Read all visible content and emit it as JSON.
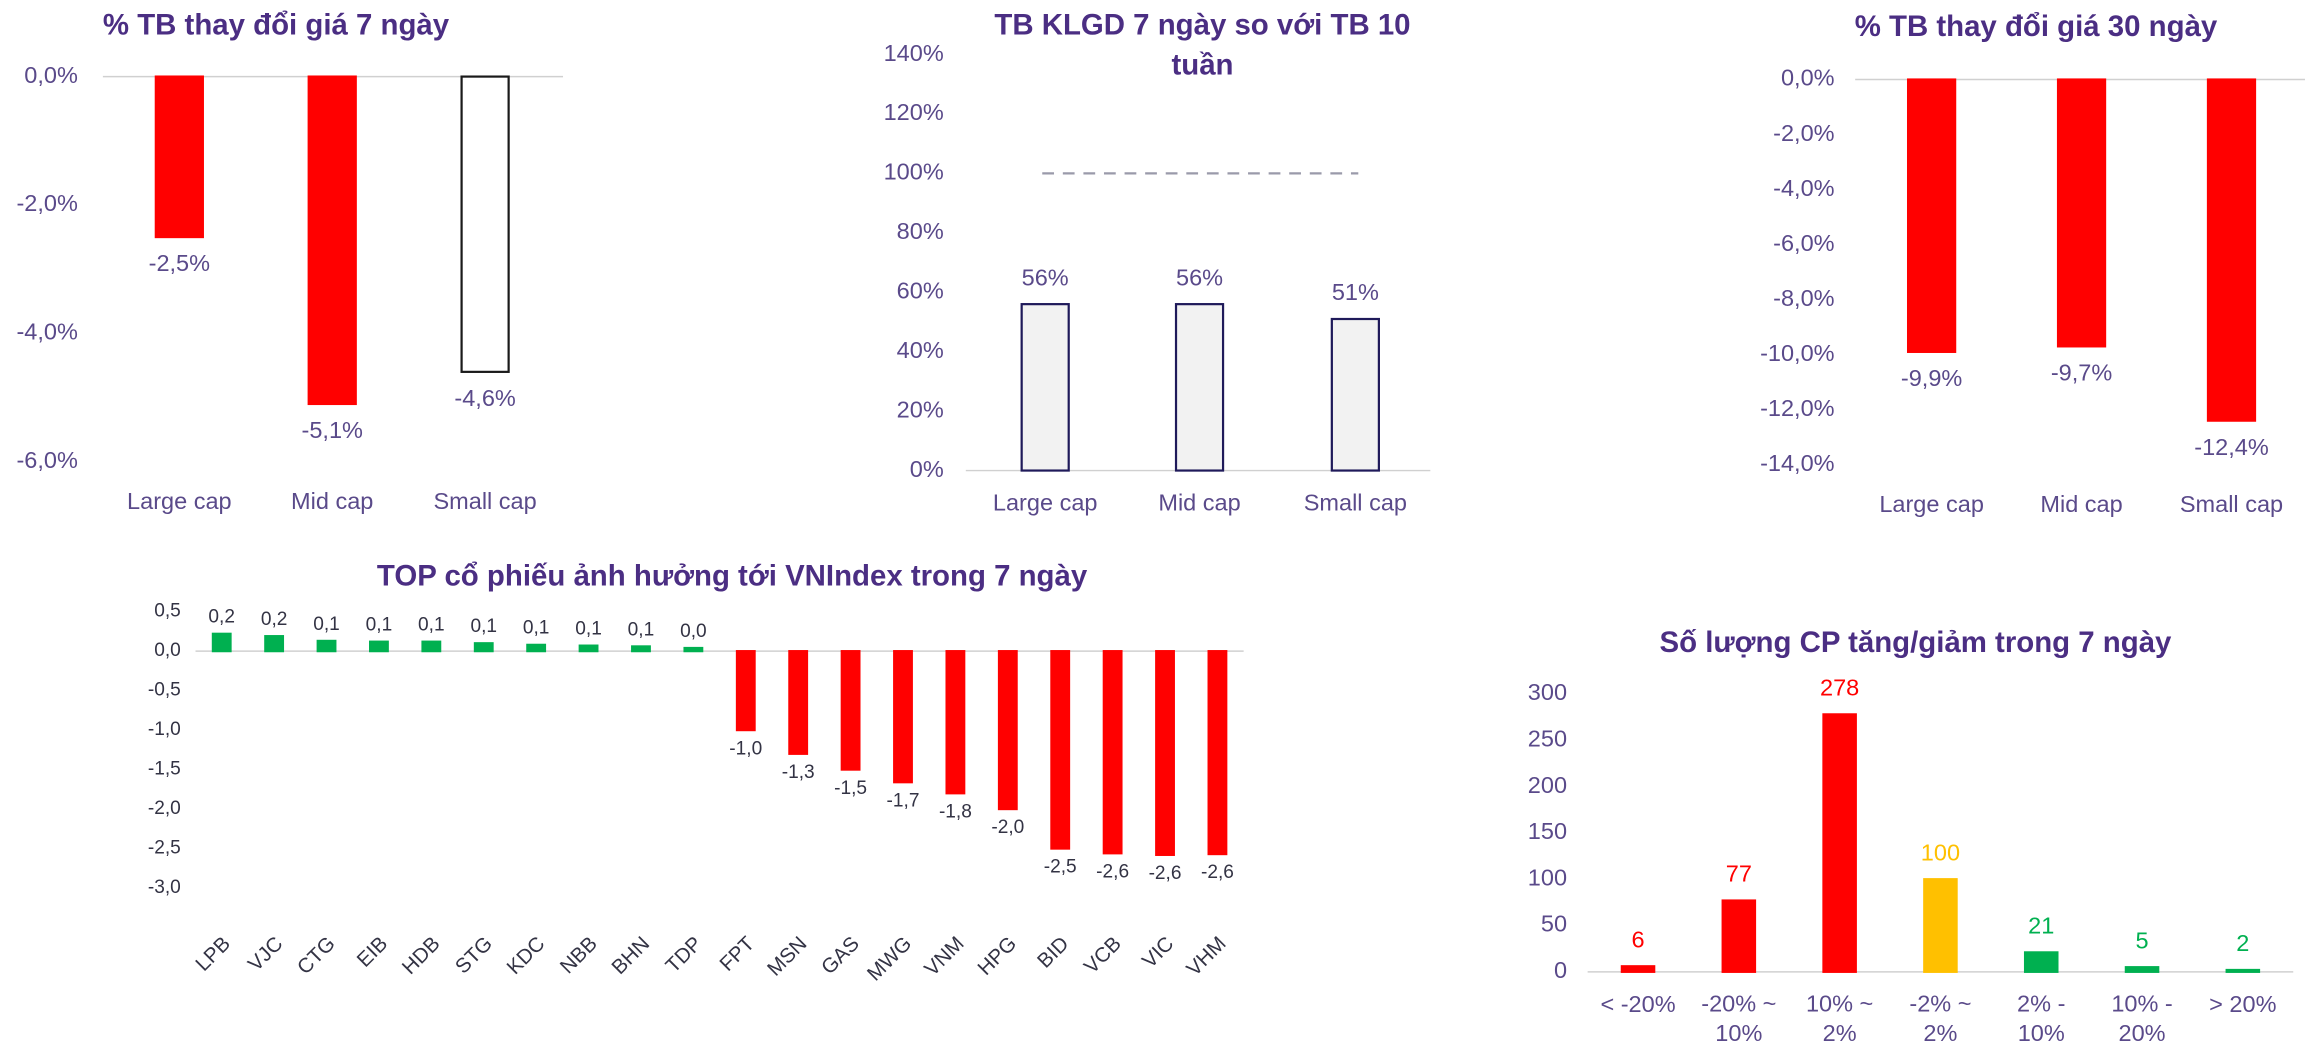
{
  "chart_data": [
    {
      "type": "bar",
      "title": "% TB thay đổi giá 7 ngày",
      "categories": [
        "Large cap",
        "Mid cap",
        "Small cap"
      ],
      "values": [
        -2.5,
        -5.1,
        -4.6
      ],
      "value_labels": [
        "-2,5%",
        "-5,1%",
        "-4,6%"
      ],
      "colors": [
        "#ff0000",
        "#ff0000",
        "#ffffff"
      ],
      "edgecolors": [
        "#ff0000",
        "#ff0000",
        "#1a1a1a"
      ],
      "ylim": [
        -6,
        0
      ],
      "yticks": [
        {
          "value": 0,
          "label": "0,0%"
        },
        {
          "value": -2,
          "label": "-2,0%"
        },
        {
          "value": -4,
          "label": "-4,0%"
        },
        {
          "value": -6,
          "label": "-6,0%"
        }
      ]
    },
    {
      "type": "bar",
      "title": "TB KLGD 7 ngày so với TB 10 tuần",
      "categories": [
        "Large cap",
        "Mid cap",
        "Small cap"
      ],
      "values": [
        56,
        56,
        51
      ],
      "value_labels": [
        "56%",
        "56%",
        "51%"
      ],
      "colors": [
        "#f2f2f2",
        "#f2f2f2",
        "#f2f2f2"
      ],
      "edgecolors": [
        "#1f1a5a",
        "#1f1a5a",
        "#1f1a5a"
      ],
      "reference_line": 100,
      "ylim": [
        0,
        140
      ],
      "yticks": [
        {
          "value": 0,
          "label": "0%"
        },
        {
          "value": 20,
          "label": "20%"
        },
        {
          "value": 40,
          "label": "40%"
        },
        {
          "value": 60,
          "label": "60%"
        },
        {
          "value": 80,
          "label": "80%"
        },
        {
          "value": 100,
          "label": "100%"
        },
        {
          "value": 120,
          "label": "120%"
        },
        {
          "value": 140,
          "label": "140%"
        }
      ]
    },
    {
      "type": "bar",
      "title": "% TB thay đổi giá 30 ngày",
      "categories": [
        "Large cap",
        "Mid cap",
        "Small cap"
      ],
      "values": [
        -9.9,
        -9.7,
        -12.4
      ],
      "value_labels": [
        "-9,9%",
        "-9,7%",
        "-12,4%"
      ],
      "colors": [
        "#ff0000",
        "#ff0000",
        "#ff0000"
      ],
      "edgecolors": [
        "#ff0000",
        "#ff0000",
        "#ff0000"
      ],
      "ylim": [
        -14,
        0
      ],
      "yticks": [
        {
          "value": 0,
          "label": "0,0%"
        },
        {
          "value": -2,
          "label": "-2,0%"
        },
        {
          "value": -4,
          "label": "-4,0%"
        },
        {
          "value": -6,
          "label": "-6,0%"
        },
        {
          "value": -8,
          "label": "-8,0%"
        },
        {
          "value": -10,
          "label": "-10,0%"
        },
        {
          "value": -12,
          "label": "-12,0%"
        },
        {
          "value": -14,
          "label": "-14,0%"
        }
      ]
    },
    {
      "type": "bar",
      "title": "TOP cổ phiếu ảnh hưởng tới VNIndex trong 7 ngày",
      "categories": [
        "LPB",
        "VJC",
        "CTG",
        "EIB",
        "HDB",
        "STG",
        "KDC",
        "NBB",
        "BHN",
        "TDP",
        "FPT",
        "MSN",
        "GAS",
        "MWG",
        "VNM",
        "HPG",
        "BID",
        "VCB",
        "VIC",
        "VHM"
      ],
      "values": [
        0.22,
        0.19,
        0.13,
        0.12,
        0.12,
        0.1,
        0.08,
        0.07,
        0.06,
        0.04,
        -1.0,
        -1.3,
        -1.5,
        -1.66,
        -1.8,
        -2.0,
        -2.5,
        -2.56,
        -2.58,
        -2.57
      ],
      "value_labels": [
        "0,2",
        "0,2",
        "0,1",
        "0,1",
        "0,1",
        "0,1",
        "0,1",
        "0,1",
        "0,1",
        "0,0",
        "-1,0",
        "-1,3",
        "-1,5",
        "-1,7",
        "-1,8",
        "-2,0",
        "-2,5",
        "-2,6",
        "-2,6",
        "-2,6"
      ],
      "colors": [
        "#00b050",
        "#00b050",
        "#00b050",
        "#00b050",
        "#00b050",
        "#00b050",
        "#00b050",
        "#00b050",
        "#00b050",
        "#00b050",
        "#ff0000",
        "#ff0000",
        "#ff0000",
        "#ff0000",
        "#ff0000",
        "#ff0000",
        "#ff0000",
        "#ff0000",
        "#ff0000",
        "#ff0000"
      ],
      "ylim": [
        -3.0,
        0.5
      ],
      "yticks": [
        {
          "value": 0.5,
          "label": "0,5"
        },
        {
          "value": 0,
          "label": "0,0"
        },
        {
          "value": -0.5,
          "label": "-0,5"
        },
        {
          "value": -1,
          "label": "-1,0"
        },
        {
          "value": -1.5,
          "label": "-1,5"
        },
        {
          "value": -2,
          "label": "-2,0"
        },
        {
          "value": -2.5,
          "label": "-2,5"
        },
        {
          "value": -3,
          "label": "-3,0"
        }
      ]
    },
    {
      "type": "bar",
      "title": "Số lượng CP tăng/giảm trong 7 ngày",
      "categories": [
        "< -20%",
        "-20% ~ 10%",
        "10% ~ 2%",
        "-2% ~ 2%",
        "2% - 10%",
        "10% - 20%",
        "> 20%"
      ],
      "values": [
        6,
        77,
        278,
        100,
        21,
        5,
        2
      ],
      "colors": [
        "#ff0000",
        "#ff0000",
        "#ff0000",
        "#ffc000",
        "#00b050",
        "#00b050",
        "#00b050"
      ],
      "ylim": [
        0,
        300
      ],
      "yticks": [
        0,
        50,
        100,
        150,
        200,
        250,
        300
      ]
    }
  ]
}
